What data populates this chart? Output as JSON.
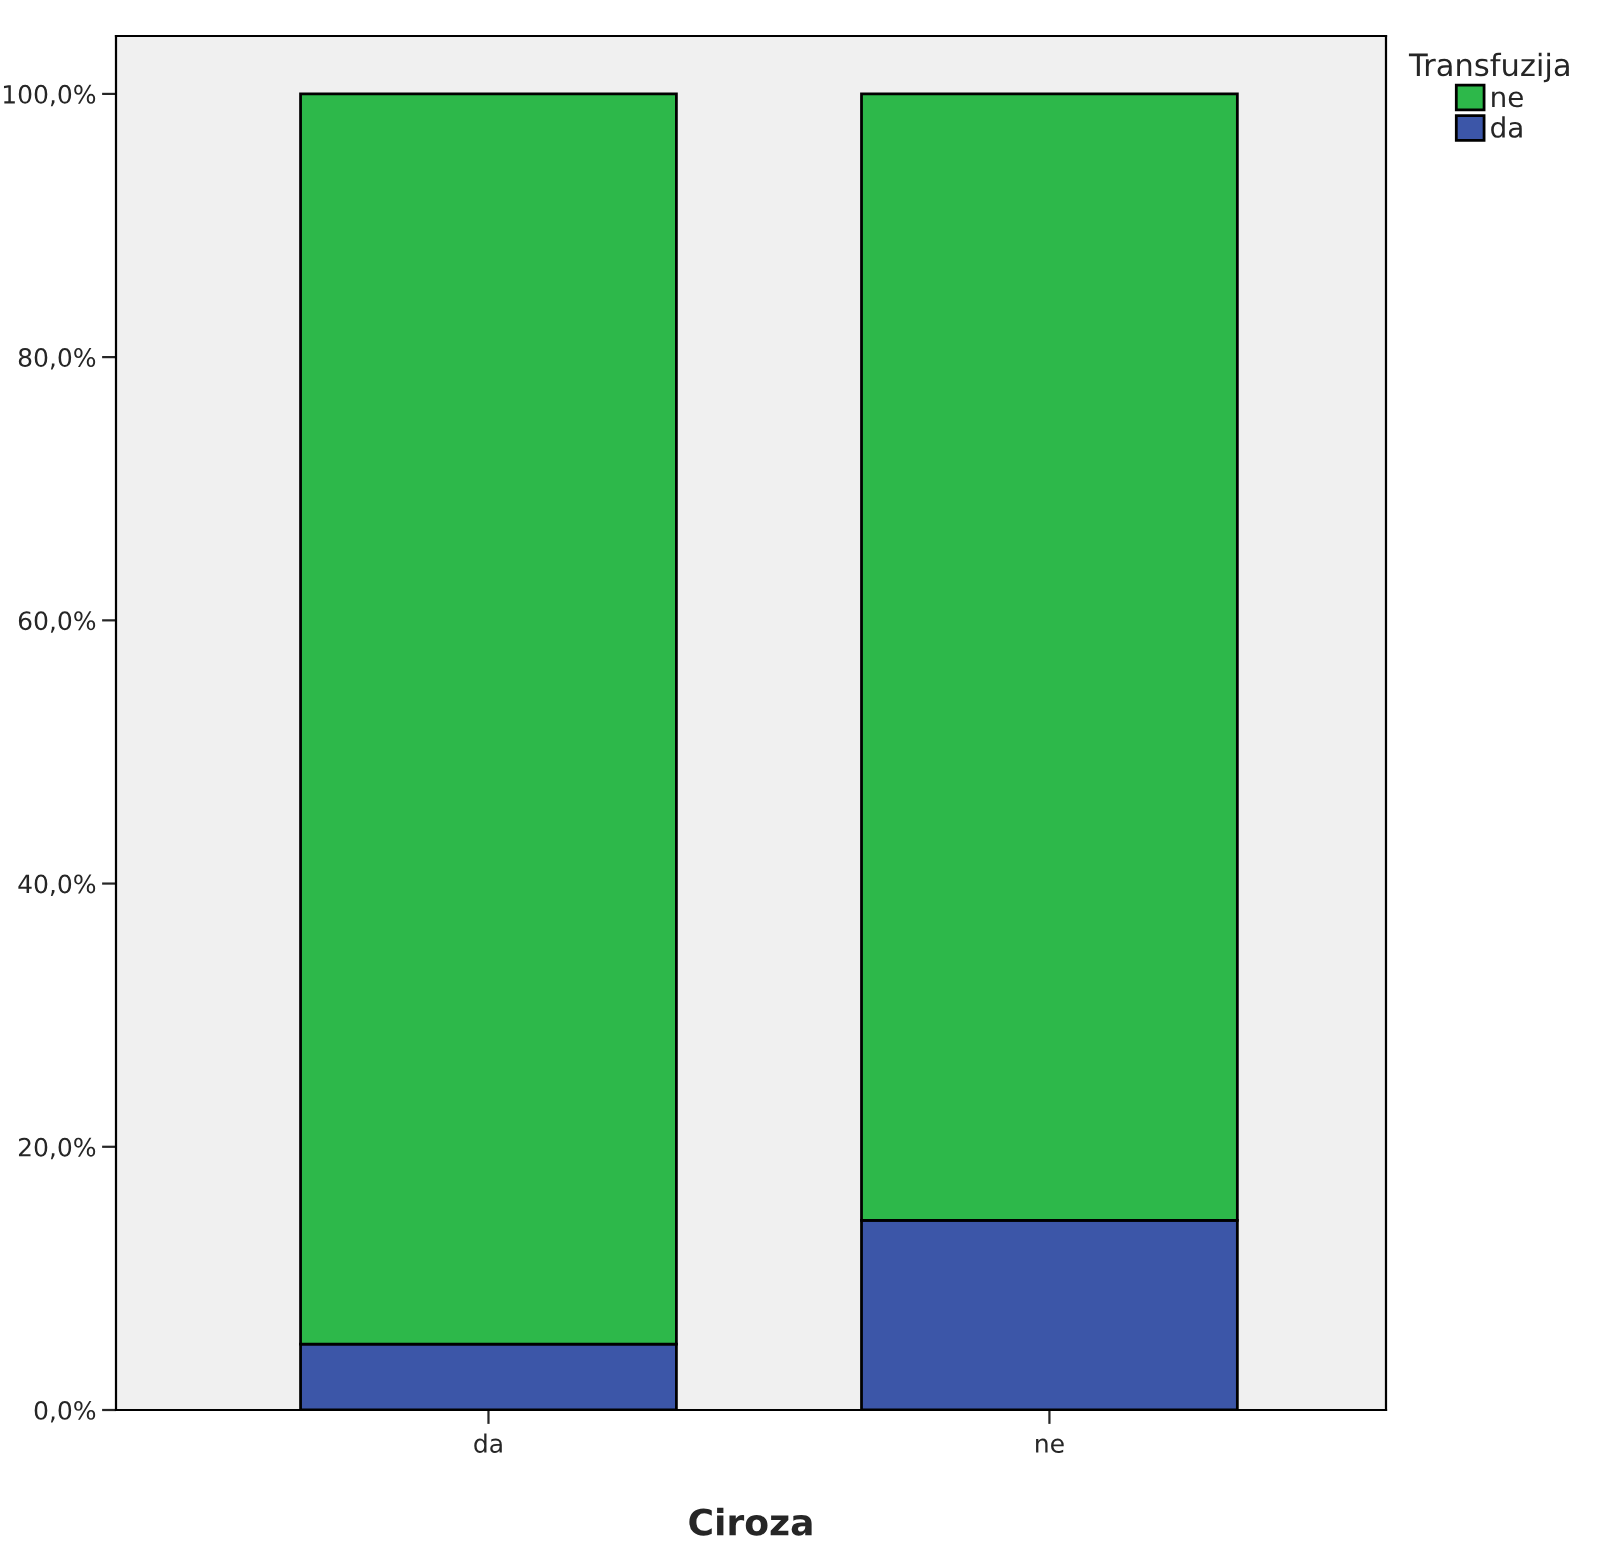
{
  "chart_data": {
    "type": "bar",
    "stacked": true,
    "xlabel": "Ciroza",
    "legend_title": "Transfuzija",
    "legend": "top right",
    "grid": false,
    "categories": [
      "da",
      "ne"
    ],
    "series": [
      {
        "name": "da",
        "color": "#3c56a8",
        "values": [
          5.0,
          14.4
        ]
      },
      {
        "name": "ne",
        "color": "#2db84a",
        "values": [
          95.0,
          85.6
        ]
      }
    ],
    "ylim": [
      0,
      104.4
    ],
    "yticks": [
      {
        "value": 0,
        "label": "0,0%"
      },
      {
        "value": 20,
        "label": "20,0%"
      },
      {
        "value": 40,
        "label": "40,0%"
      },
      {
        "value": 60,
        "label": "60,0%"
      },
      {
        "value": 80,
        "label": "80,0%"
      },
      {
        "value": 100,
        "label": "100,0%"
      }
    ]
  }
}
